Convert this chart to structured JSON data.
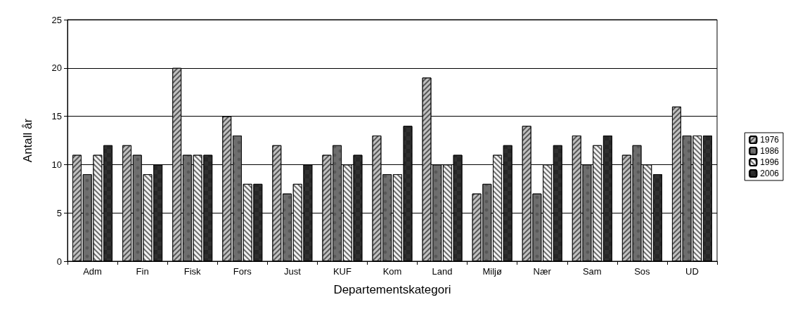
{
  "chart_data": {
    "type": "bar",
    "xlabel": "Departementskategori",
    "ylabel": "Antall år",
    "categories": [
      "Adm",
      "Fin",
      "Fisk",
      "Fors",
      "Just",
      "KUF",
      "Kom",
      "Land",
      "Miljø",
      "Nær",
      "Sam",
      "Sos",
      "UD"
    ],
    "series": [
      {
        "name": "1976",
        "color": "#c0c0c0",
        "values": [
          11,
          12,
          20,
          15,
          12,
          11,
          13,
          19,
          7,
          14,
          13,
          11,
          16
        ]
      },
      {
        "name": "1986",
        "color": "#6e6e6e",
        "values": [
          9,
          11,
          11,
          13,
          7,
          12,
          9,
          10,
          8,
          7,
          10,
          12,
          13
        ]
      },
      {
        "name": "1996",
        "color": "#f2f2f2",
        "values": [
          11,
          9,
          11,
          8,
          8,
          10,
          9,
          10,
          11,
          10,
          12,
          10,
          13
        ]
      },
      {
        "name": "2006",
        "color": "#303030",
        "values": [
          12,
          10,
          11,
          8,
          10,
          11,
          14,
          11,
          12,
          12,
          13,
          9,
          13
        ]
      }
    ],
    "ylim": [
      0,
      25
    ],
    "yticks": [
      0,
      5,
      10,
      15,
      20,
      25
    ],
    "grid": "y",
    "legend": "right"
  }
}
